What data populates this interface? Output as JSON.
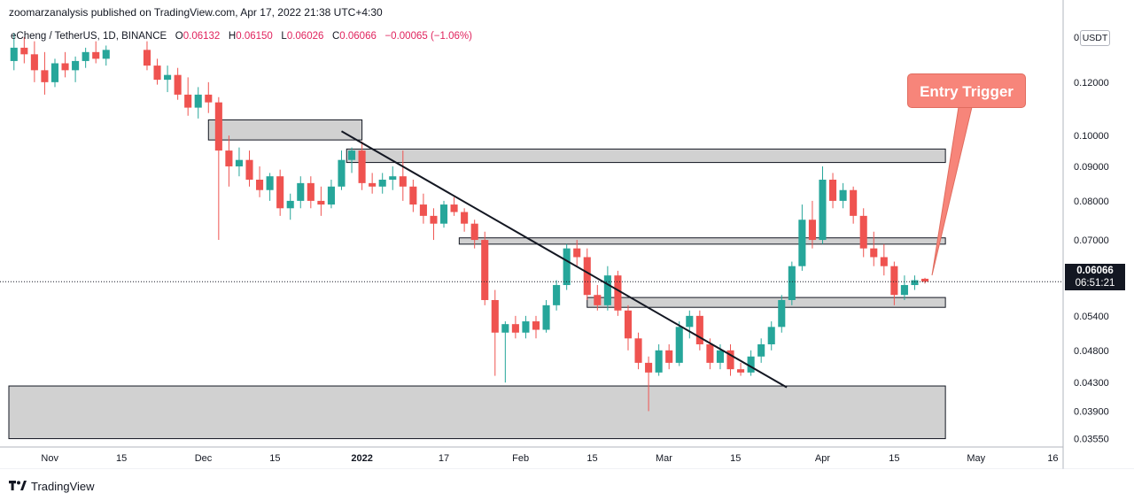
{
  "header": {
    "published_by": "zoomarzanalysis published on TradingView.com, Apr 17, 2022 21:38 UTC+4:30"
  },
  "legend": {
    "symbol": "eCheng / TetherUS, 1D, BINANCE",
    "o_label": "O",
    "o_value": "0.06132",
    "h_label": "H",
    "h_value": "0.06150",
    "l_label": "L",
    "l_value": "0.06026",
    "c_label": "C",
    "c_value": "0.06066",
    "change": "−0.00065 (−1.06%)"
  },
  "currency_badge": "USDT",
  "last_price": {
    "value": "0.06066",
    "countdown": "06:51:21"
  },
  "annotation": {
    "entry_label": "Entry Trigger"
  },
  "footer": {
    "brand": "TradingView"
  },
  "colors": {
    "up": "#26a69a",
    "down": "#ef5350",
    "zone_fill": "#d1d1d1",
    "zone_stroke": "#131722",
    "label_bg": "#f7857a"
  },
  "chart_data": {
    "type": "candlestick",
    "y_scale": "log",
    "ylim": [
      0.0345,
      0.146
    ],
    "x_range": [
      "2021-10-24",
      "2022-05-18"
    ],
    "y_ticks": [
      "0.14000",
      "0.12000",
      "0.10000",
      "0.09000",
      "0.08000",
      "0.07000",
      "0.05400",
      "0.04800",
      "0.04300",
      "0.03900",
      "0.03550"
    ],
    "x_ticks": [
      {
        "date": "2021-11-01",
        "label": "Nov"
      },
      {
        "date": "2021-11-15",
        "label": "15"
      },
      {
        "date": "2021-12-01",
        "label": "Dec"
      },
      {
        "date": "2021-12-15",
        "label": "15"
      },
      {
        "date": "2022-01-01",
        "label": "2022"
      },
      {
        "date": "2022-01-17",
        "label": "17"
      },
      {
        "date": "2022-02-01",
        "label": "Feb"
      },
      {
        "date": "2022-02-15",
        "label": "15"
      },
      {
        "date": "2022-03-01",
        "label": "Mar"
      },
      {
        "date": "2022-03-15",
        "label": "15"
      },
      {
        "date": "2022-04-01",
        "label": "Apr"
      },
      {
        "date": "2022-04-15",
        "label": "15"
      },
      {
        "date": "2022-05-01",
        "label": "May"
      },
      {
        "date": "2022-05-16",
        "label": "16"
      }
    ],
    "trendline": {
      "from": {
        "date": "2021-12-28",
        "price": 0.1015
      },
      "to": {
        "date": "2022-03-25",
        "price": 0.0423
      }
    },
    "zones": [
      {
        "from": "2021-12-02",
        "to": "2022-01-01",
        "low": 0.0985,
        "high": 0.1055
      },
      {
        "from": "2021-12-29",
        "to": "2022-04-25",
        "low": 0.0912,
        "high": 0.0955
      },
      {
        "from": "2022-01-20",
        "to": "2022-04-25",
        "low": 0.069,
        "high": 0.0705
      },
      {
        "from": "2022-02-14",
        "to": "2022-04-25",
        "low": 0.0556,
        "high": 0.0575
      },
      {
        "from": "2021-10-24",
        "to": "2022-04-25",
        "low": 0.0355,
        "high": 0.0425
      }
    ],
    "candles": [
      {
        "d": "2021-10-25",
        "o": 0.129,
        "h": 0.142,
        "l": 0.125,
        "c": 0.135
      },
      {
        "d": "2021-10-27",
        "o": 0.135,
        "h": 0.14,
        "l": 0.128,
        "c": 0.132
      },
      {
        "d": "2021-10-29",
        "o": 0.132,
        "h": 0.138,
        "l": 0.12,
        "c": 0.125
      },
      {
        "d": "2021-10-31",
        "o": 0.125,
        "h": 0.133,
        "l": 0.115,
        "c": 0.12
      },
      {
        "d": "2021-11-02",
        "o": 0.12,
        "h": 0.13,
        "l": 0.118,
        "c": 0.128
      },
      {
        "d": "2021-11-04",
        "o": 0.128,
        "h": 0.133,
        "l": 0.122,
        "c": 0.125
      },
      {
        "d": "2021-11-06",
        "o": 0.125,
        "h": 0.131,
        "l": 0.12,
        "c": 0.129
      },
      {
        "d": "2021-11-08",
        "o": 0.129,
        "h": 0.135,
        "l": 0.126,
        "c": 0.133
      },
      {
        "d": "2021-11-10",
        "o": 0.133,
        "h": 0.138,
        "l": 0.128,
        "c": 0.13
      },
      {
        "d": "2021-11-12",
        "o": 0.13,
        "h": 0.136,
        "l": 0.127,
        "c": 0.134
      },
      {
        "d": "2021-11-20",
        "o": 0.134,
        "h": 0.138,
        "l": 0.125,
        "c": 0.127
      },
      {
        "d": "2021-11-22",
        "o": 0.127,
        "h": 0.13,
        "l": 0.119,
        "c": 0.121
      },
      {
        "d": "2021-11-24",
        "o": 0.121,
        "h": 0.127,
        "l": 0.116,
        "c": 0.123
      },
      {
        "d": "2021-11-26",
        "o": 0.123,
        "h": 0.126,
        "l": 0.113,
        "c": 0.115
      },
      {
        "d": "2021-11-28",
        "o": 0.115,
        "h": 0.122,
        "l": 0.107,
        "c": 0.11
      },
      {
        "d": "2021-11-30",
        "o": 0.11,
        "h": 0.118,
        "l": 0.106,
        "c": 0.115
      },
      {
        "d": "2021-12-02",
        "o": 0.115,
        "h": 0.12,
        "l": 0.108,
        "c": 0.112
      },
      {
        "d": "2021-12-04",
        "o": 0.112,
        "h": 0.114,
        "l": 0.07,
        "c": 0.095
      },
      {
        "d": "2021-12-06",
        "o": 0.095,
        "h": 0.1,
        "l": 0.084,
        "c": 0.09
      },
      {
        "d": "2021-12-08",
        "o": 0.09,
        "h": 0.096,
        "l": 0.087,
        "c": 0.092
      },
      {
        "d": "2021-12-10",
        "o": 0.092,
        "h": 0.095,
        "l": 0.084,
        "c": 0.086
      },
      {
        "d": "2021-12-12",
        "o": 0.086,
        "h": 0.09,
        "l": 0.081,
        "c": 0.083
      },
      {
        "d": "2021-12-14",
        "o": 0.083,
        "h": 0.088,
        "l": 0.08,
        "c": 0.087
      },
      {
        "d": "2021-12-16",
        "o": 0.087,
        "h": 0.089,
        "l": 0.076,
        "c": 0.078
      },
      {
        "d": "2021-12-18",
        "o": 0.078,
        "h": 0.082,
        "l": 0.075,
        "c": 0.08
      },
      {
        "d": "2021-12-20",
        "o": 0.08,
        "h": 0.087,
        "l": 0.078,
        "c": 0.085
      },
      {
        "d": "2021-12-22",
        "o": 0.085,
        "h": 0.087,
        "l": 0.078,
        "c": 0.08
      },
      {
        "d": "2021-12-24",
        "o": 0.08,
        "h": 0.084,
        "l": 0.076,
        "c": 0.079
      },
      {
        "d": "2021-12-26",
        "o": 0.079,
        "h": 0.086,
        "l": 0.078,
        "c": 0.084
      },
      {
        "d": "2021-12-28",
        "o": 0.084,
        "h": 0.095,
        "l": 0.083,
        "c": 0.092
      },
      {
        "d": "2021-12-30",
        "o": 0.092,
        "h": 0.096,
        "l": 0.088,
        "c": 0.095
      },
      {
        "d": "2022-01-01",
        "o": 0.095,
        "h": 0.098,
        "l": 0.083,
        "c": 0.085
      },
      {
        "d": "2022-01-03",
        "o": 0.085,
        "h": 0.088,
        "l": 0.082,
        "c": 0.084
      },
      {
        "d": "2022-01-05",
        "o": 0.084,
        "h": 0.088,
        "l": 0.082,
        "c": 0.086
      },
      {
        "d": "2022-01-07",
        "o": 0.086,
        "h": 0.09,
        "l": 0.083,
        "c": 0.087
      },
      {
        "d": "2022-01-09",
        "o": 0.087,
        "h": 0.095,
        "l": 0.08,
        "c": 0.084
      },
      {
        "d": "2022-01-11",
        "o": 0.084,
        "h": 0.086,
        "l": 0.077,
        "c": 0.079
      },
      {
        "d": "2022-01-13",
        "o": 0.079,
        "h": 0.082,
        "l": 0.074,
        "c": 0.076
      },
      {
        "d": "2022-01-15",
        "o": 0.076,
        "h": 0.078,
        "l": 0.07,
        "c": 0.074
      },
      {
        "d": "2022-01-17",
        "o": 0.074,
        "h": 0.08,
        "l": 0.073,
        "c": 0.079
      },
      {
        "d": "2022-01-19",
        "o": 0.079,
        "h": 0.081,
        "l": 0.076,
        "c": 0.077
      },
      {
        "d": "2022-01-21",
        "o": 0.077,
        "h": 0.078,
        "l": 0.072,
        "c": 0.074
      },
      {
        "d": "2022-01-23",
        "o": 0.074,
        "h": 0.075,
        "l": 0.068,
        "c": 0.07
      },
      {
        "d": "2022-01-25",
        "o": 0.07,
        "h": 0.072,
        "l": 0.056,
        "c": 0.057
      },
      {
        "d": "2022-01-27",
        "o": 0.057,
        "h": 0.059,
        "l": 0.044,
        "c": 0.051
      },
      {
        "d": "2022-01-29",
        "o": 0.051,
        "h": 0.053,
        "l": 0.043,
        "c": 0.0525
      },
      {
        "d": "2022-01-31",
        "o": 0.0525,
        "h": 0.054,
        "l": 0.05,
        "c": 0.051
      },
      {
        "d": "2022-02-02",
        "o": 0.051,
        "h": 0.054,
        "l": 0.05,
        "c": 0.053
      },
      {
        "d": "2022-02-04",
        "o": 0.053,
        "h": 0.054,
        "l": 0.05,
        "c": 0.0515
      },
      {
        "d": "2022-02-06",
        "o": 0.0515,
        "h": 0.057,
        "l": 0.051,
        "c": 0.056
      },
      {
        "d": "2022-02-08",
        "o": 0.056,
        "h": 0.061,
        "l": 0.055,
        "c": 0.06
      },
      {
        "d": "2022-02-10",
        "o": 0.06,
        "h": 0.069,
        "l": 0.059,
        "c": 0.068
      },
      {
        "d": "2022-02-12",
        "o": 0.068,
        "h": 0.07,
        "l": 0.064,
        "c": 0.066
      },
      {
        "d": "2022-02-14",
        "o": 0.066,
        "h": 0.068,
        "l": 0.057,
        "c": 0.058
      },
      {
        "d": "2022-02-16",
        "o": 0.058,
        "h": 0.06,
        "l": 0.055,
        "c": 0.056
      },
      {
        "d": "2022-02-18",
        "o": 0.056,
        "h": 0.064,
        "l": 0.055,
        "c": 0.062
      },
      {
        "d": "2022-02-20",
        "o": 0.062,
        "h": 0.063,
        "l": 0.054,
        "c": 0.055
      },
      {
        "d": "2022-02-22",
        "o": 0.055,
        "h": 0.056,
        "l": 0.048,
        "c": 0.05
      },
      {
        "d": "2022-02-24",
        "o": 0.05,
        "h": 0.051,
        "l": 0.045,
        "c": 0.046
      },
      {
        "d": "2022-02-26",
        "o": 0.046,
        "h": 0.047,
        "l": 0.039,
        "c": 0.0445
      },
      {
        "d": "2022-02-28",
        "o": 0.0445,
        "h": 0.049,
        "l": 0.044,
        "c": 0.048
      },
      {
        "d": "2022-03-02",
        "o": 0.048,
        "h": 0.049,
        "l": 0.045,
        "c": 0.046
      },
      {
        "d": "2022-03-04",
        "o": 0.046,
        "h": 0.053,
        "l": 0.0455,
        "c": 0.052
      },
      {
        "d": "2022-03-06",
        "o": 0.052,
        "h": 0.055,
        "l": 0.05,
        "c": 0.054
      },
      {
        "d": "2022-03-08",
        "o": 0.054,
        "h": 0.055,
        "l": 0.048,
        "c": 0.049
      },
      {
        "d": "2022-03-10",
        "o": 0.049,
        "h": 0.05,
        "l": 0.045,
        "c": 0.046
      },
      {
        "d": "2022-03-12",
        "o": 0.046,
        "h": 0.049,
        "l": 0.045,
        "c": 0.048
      },
      {
        "d": "2022-03-14",
        "o": 0.048,
        "h": 0.049,
        "l": 0.044,
        "c": 0.045
      },
      {
        "d": "2022-03-16",
        "o": 0.045,
        "h": 0.046,
        "l": 0.044,
        "c": 0.0445
      },
      {
        "d": "2022-03-18",
        "o": 0.0445,
        "h": 0.048,
        "l": 0.044,
        "c": 0.047
      },
      {
        "d": "2022-03-20",
        "o": 0.047,
        "h": 0.05,
        "l": 0.046,
        "c": 0.049
      },
      {
        "d": "2022-03-22",
        "o": 0.049,
        "h": 0.053,
        "l": 0.048,
        "c": 0.052
      },
      {
        "d": "2022-03-24",
        "o": 0.052,
        "h": 0.058,
        "l": 0.051,
        "c": 0.057
      },
      {
        "d": "2022-03-26",
        "o": 0.057,
        "h": 0.065,
        "l": 0.056,
        "c": 0.064
      },
      {
        "d": "2022-03-28",
        "o": 0.064,
        "h": 0.079,
        "l": 0.063,
        "c": 0.075
      },
      {
        "d": "2022-03-30",
        "o": 0.075,
        "h": 0.08,
        "l": 0.068,
        "c": 0.07
      },
      {
        "d": "2022-04-01",
        "o": 0.07,
        "h": 0.09,
        "l": 0.069,
        "c": 0.086
      },
      {
        "d": "2022-04-03",
        "o": 0.086,
        "h": 0.088,
        "l": 0.078,
        "c": 0.08
      },
      {
        "d": "2022-04-05",
        "o": 0.08,
        "h": 0.085,
        "l": 0.078,
        "c": 0.083
      },
      {
        "d": "2022-04-07",
        "o": 0.083,
        "h": 0.084,
        "l": 0.074,
        "c": 0.076
      },
      {
        "d": "2022-04-09",
        "o": 0.076,
        "h": 0.078,
        "l": 0.066,
        "c": 0.068
      },
      {
        "d": "2022-04-11",
        "o": 0.068,
        "h": 0.072,
        "l": 0.064,
        "c": 0.066
      },
      {
        "d": "2022-04-13",
        "o": 0.066,
        "h": 0.069,
        "l": 0.062,
        "c": 0.064
      },
      {
        "d": "2022-04-15",
        "o": 0.064,
        "h": 0.065,
        "l": 0.056,
        "c": 0.058
      },
      {
        "d": "2022-04-17",
        "o": 0.058,
        "h": 0.062,
        "l": 0.057,
        "c": 0.06
      },
      {
        "d": "2022-04-19",
        "o": 0.06,
        "h": 0.062,
        "l": 0.059,
        "c": 0.061
      },
      {
        "d": "2022-04-21",
        "o": 0.0613,
        "h": 0.0615,
        "l": 0.0603,
        "c": 0.0607
      }
    ]
  }
}
